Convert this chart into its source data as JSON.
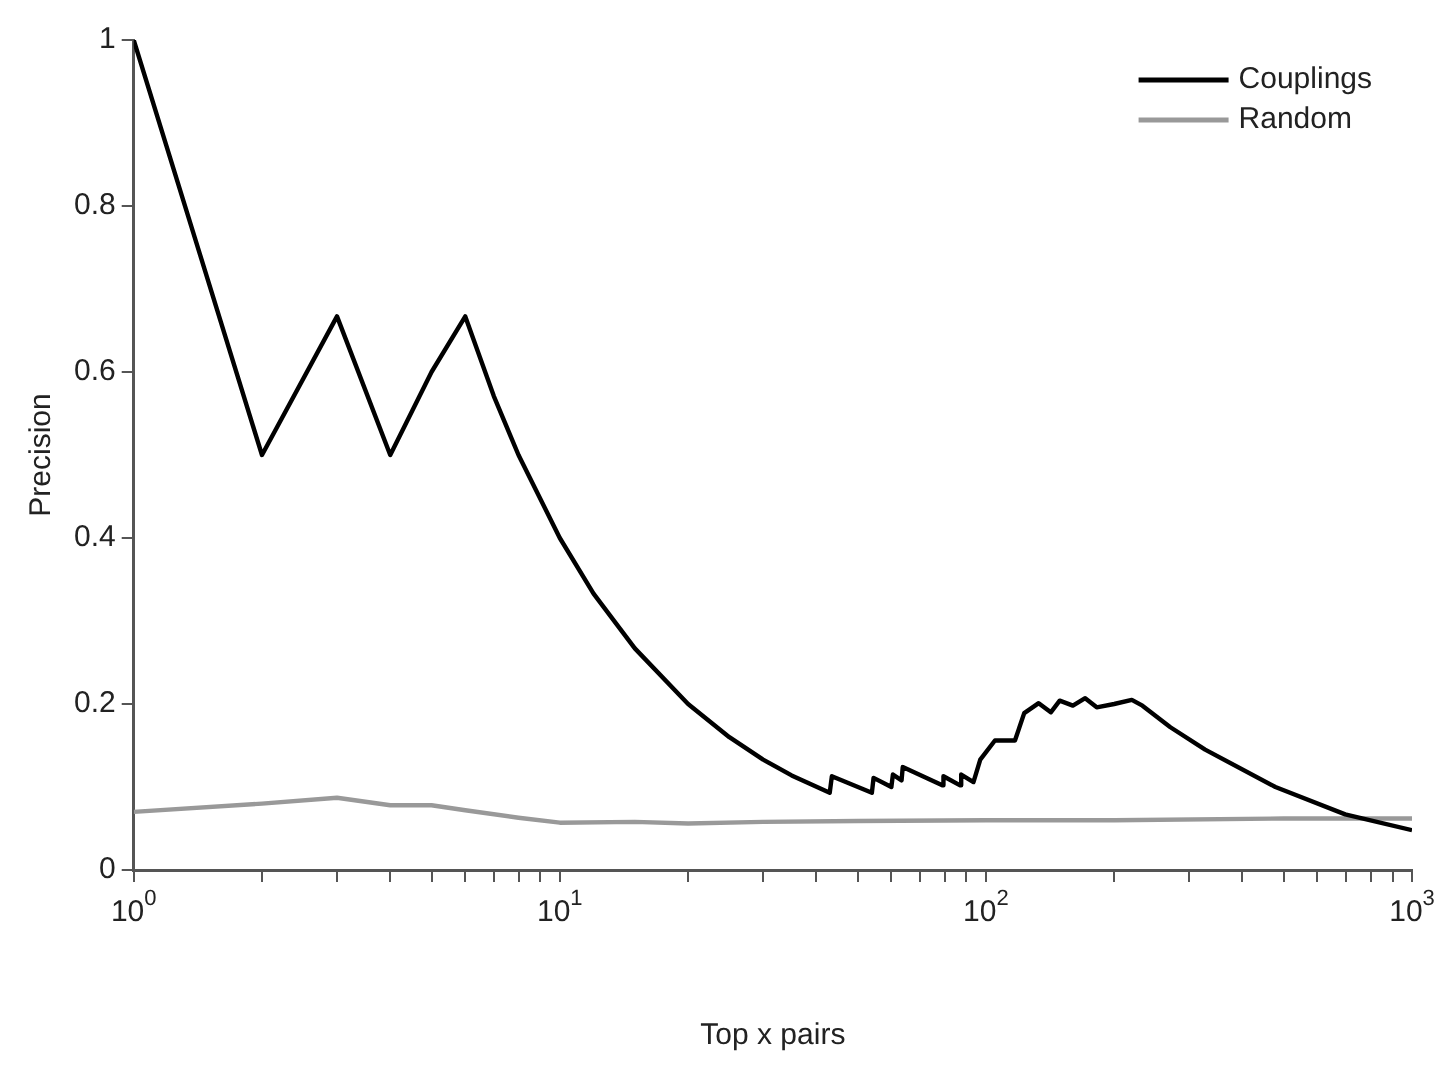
{
  "chart_data": {
    "type": "line",
    "xlabel": "Top x pairs",
    "ylabel": "Precision",
    "log": "x",
    "xlim": [
      1,
      1000
    ],
    "ylim": [
      0,
      1
    ],
    "xticks": [
      {
        "value": 1,
        "label": "10$^{0}$"
      },
      {
        "value": 2,
        "label": null
      },
      {
        "value": 3,
        "label": null
      },
      {
        "value": 4,
        "label": null
      },
      {
        "value": 5,
        "label": null
      },
      {
        "value": 6,
        "label": null
      },
      {
        "value": 7,
        "label": null
      },
      {
        "value": 8,
        "label": null
      },
      {
        "value": 9,
        "label": null
      },
      {
        "value": 10,
        "label": "10$^{1}$"
      },
      {
        "value": 20,
        "label": null
      },
      {
        "value": 30,
        "label": null
      },
      {
        "value": 40,
        "label": null
      },
      {
        "value": 50,
        "label": null
      },
      {
        "value": 60,
        "label": null
      },
      {
        "value": 70,
        "label": null
      },
      {
        "value": 80,
        "label": null
      },
      {
        "value": 90,
        "label": null
      },
      {
        "value": 100,
        "label": "10$^{2}$"
      },
      {
        "value": 200,
        "label": null
      },
      {
        "value": 300,
        "label": null
      },
      {
        "value": 400,
        "label": null
      },
      {
        "value": 500,
        "label": null
      },
      {
        "value": 600,
        "label": null
      },
      {
        "value": 700,
        "label": null
      },
      {
        "value": 800,
        "label": null
      },
      {
        "value": 900,
        "label": null
      },
      {
        "value": 1000,
        "label": "10$^{3}$"
      }
    ],
    "yticks": [
      0,
      0.2,
      0.4,
      0.6,
      0.8,
      1
    ],
    "grid": false,
    "legend": "top right",
    "marker": "none",
    "line_style": "solid",
    "series": [
      {
        "name": "Couplings",
        "color": "#000000",
        "x": [
          1,
          2,
          3,
          4,
          5,
          6,
          7,
          8,
          10,
          12,
          15,
          20,
          25,
          30,
          35,
          43,
          43.5,
          54,
          54.5,
          60,
          60.5,
          63.4,
          63.8,
          79,
          79.5,
          87,
          87.5,
          93.5,
          97,
          105,
          117,
          123,
          133,
          142,
          149,
          160,
          171,
          182,
          200,
          220,
          233,
          271,
          327,
          478,
          697,
          1000
        ],
        "values": [
          1,
          0.5,
          0.667,
          0.5,
          0.6,
          0.667,
          0.571,
          0.5,
          0.4,
          0.333,
          0.267,
          0.2,
          0.16,
          0.133,
          0.114,
          0.093,
          0.113,
          0.093,
          0.111,
          0.1,
          0.115,
          0.108,
          0.124,
          0.102,
          0.113,
          0.102,
          0.115,
          0.106,
          0.133,
          0.156,
          0.156,
          0.189,
          0.201,
          0.19,
          0.204,
          0.198,
          0.207,
          0.196,
          0.2,
          0.205,
          0.198,
          0.172,
          0.145,
          0.1,
          0.067,
          0.048
        ]
      },
      {
        "name": "Random",
        "color": "#999999",
        "x": [
          1,
          2,
          3,
          4,
          5,
          6,
          8,
          10,
          15,
          20,
          30,
          50,
          100,
          200,
          500,
          1000
        ],
        "values": [
          0.07,
          0.08,
          0.087,
          0.078,
          0.078,
          0.072,
          0.063,
          0.057,
          0.058,
          0.056,
          0.058,
          0.059,
          0.06,
          0.06,
          0.062,
          0.062
        ]
      }
    ]
  }
}
